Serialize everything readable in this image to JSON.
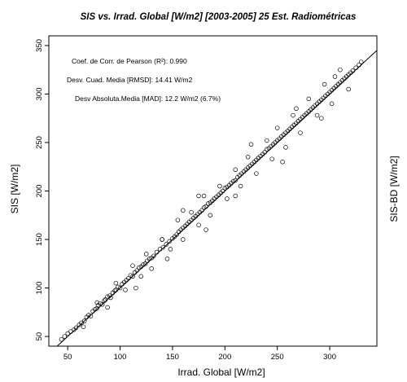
{
  "chart_data": {
    "type": "scatter",
    "title": "SIS vs. Irrad. Global [W/m2] [2003-2005] 25 Est. Radiométricas",
    "xlabel": "Irrad. Global [W/m2]",
    "ylabel": "SIS [W/m2]",
    "ylabel_right": "SIS-BD [W/m2]",
    "xlim": [
      32,
      345
    ],
    "ylim": [
      40,
      360
    ],
    "xticks": [
      50,
      100,
      150,
      200,
      250,
      300
    ],
    "yticks": [
      50,
      100,
      150,
      200,
      250,
      300,
      350
    ],
    "grid": false,
    "reference_line": {
      "name": "1:1",
      "slope": 1,
      "intercept": 0
    },
    "annotations": [
      "Coef. de Corr. de Pearson (R²): 0.990",
      "Desv. Cuad. Media [RMSD]:  14.41 W/m2",
      "Desv Absoluta.Media [MAD]:  12.2 W/m2 (6.7%)"
    ],
    "points_x": [
      44,
      47,
      50,
      53,
      56,
      58,
      61,
      63,
      66,
      68,
      70,
      72,
      74,
      76,
      78,
      79,
      81,
      83,
      85,
      86,
      88,
      90,
      91,
      93,
      95,
      96,
      98,
      100,
      102,
      104,
      106,
      108,
      110,
      112,
      114,
      116,
      118,
      120,
      122,
      124,
      126,
      128,
      130,
      132,
      135,
      138,
      141,
      144,
      147,
      150,
      152,
      154,
      156,
      158,
      160,
      162,
      164,
      166,
      168,
      170,
      172,
      174,
      176,
      178,
      180,
      182,
      184,
      186,
      188,
      190,
      192,
      194,
      196,
      198,
      200,
      202,
      204,
      206,
      208,
      210,
      212,
      214,
      216,
      218,
      220,
      222,
      224,
      226,
      228,
      230,
      232,
      234,
      236,
      238,
      240,
      242,
      244,
      246,
      248,
      250,
      252,
      254,
      256,
      258,
      260,
      262,
      264,
      266,
      268,
      270,
      272,
      274,
      276,
      278,
      280,
      282,
      284,
      286,
      288,
      290,
      292,
      294,
      296,
      298,
      300,
      302,
      304,
      306,
      308,
      310,
      312,
      314,
      316,
      318,
      320,
      322,
      325,
      328,
      330,
      65,
      78,
      88,
      96,
      105,
      112,
      120,
      125,
      130,
      140,
      148,
      155,
      160,
      168,
      175,
      180,
      186,
      195,
      202,
      210,
      215,
      222,
      230,
      240,
      245,
      250,
      258,
      265,
      272,
      280,
      288,
      295,
      302,
      310,
      318,
      160,
      182,
      210,
      255,
      268,
      292,
      305,
      225,
      175,
      115,
      140,
      145
    ],
    "points_y": [
      47,
      50,
      53,
      55,
      57,
      59,
      62,
      64,
      66,
      70,
      72,
      71,
      76,
      78,
      79,
      82,
      84,
      83,
      87,
      88,
      91,
      92,
      90,
      95,
      97,
      98,
      101,
      100,
      104,
      106,
      108,
      110,
      113,
      112,
      116,
      118,
      121,
      122,
      124,
      125,
      128,
      130,
      131,
      133,
      137,
      140,
      142,
      145,
      148,
      151,
      153,
      155,
      158,
      160,
      162,
      164,
      166,
      168,
      170,
      172,
      174,
      176,
      178,
      180,
      183,
      184,
      187,
      188,
      190,
      192,
      194,
      196,
      198,
      200,
      203,
      204,
      206,
      208,
      210,
      211,
      214,
      216,
      218,
      220,
      222,
      224,
      226,
      228,
      230,
      232,
      234,
      236,
      238,
      240,
      243,
      244,
      246,
      248,
      250,
      252,
      254,
      256,
      258,
      260,
      262,
      264,
      266,
      268,
      270,
      272,
      274,
      276,
      278,
      280,
      282,
      284,
      286,
      288,
      290,
      292,
      294,
      296,
      298,
      300,
      302,
      304,
      306,
      308,
      310,
      312,
      314,
      316,
      318,
      320,
      322,
      324,
      327,
      330,
      333,
      60,
      85,
      80,
      105,
      98,
      123,
      112,
      135,
      120,
      150,
      140,
      170,
      150,
      178,
      165,
      195,
      175,
      205,
      192,
      222,
      205,
      235,
      218,
      252,
      233,
      265,
      245,
      278,
      260,
      295,
      278,
      310,
      290,
      325,
      305,
      180,
      160,
      195,
      230,
      285,
      275,
      318,
      248,
      195,
      100,
      150,
      130
    ]
  }
}
